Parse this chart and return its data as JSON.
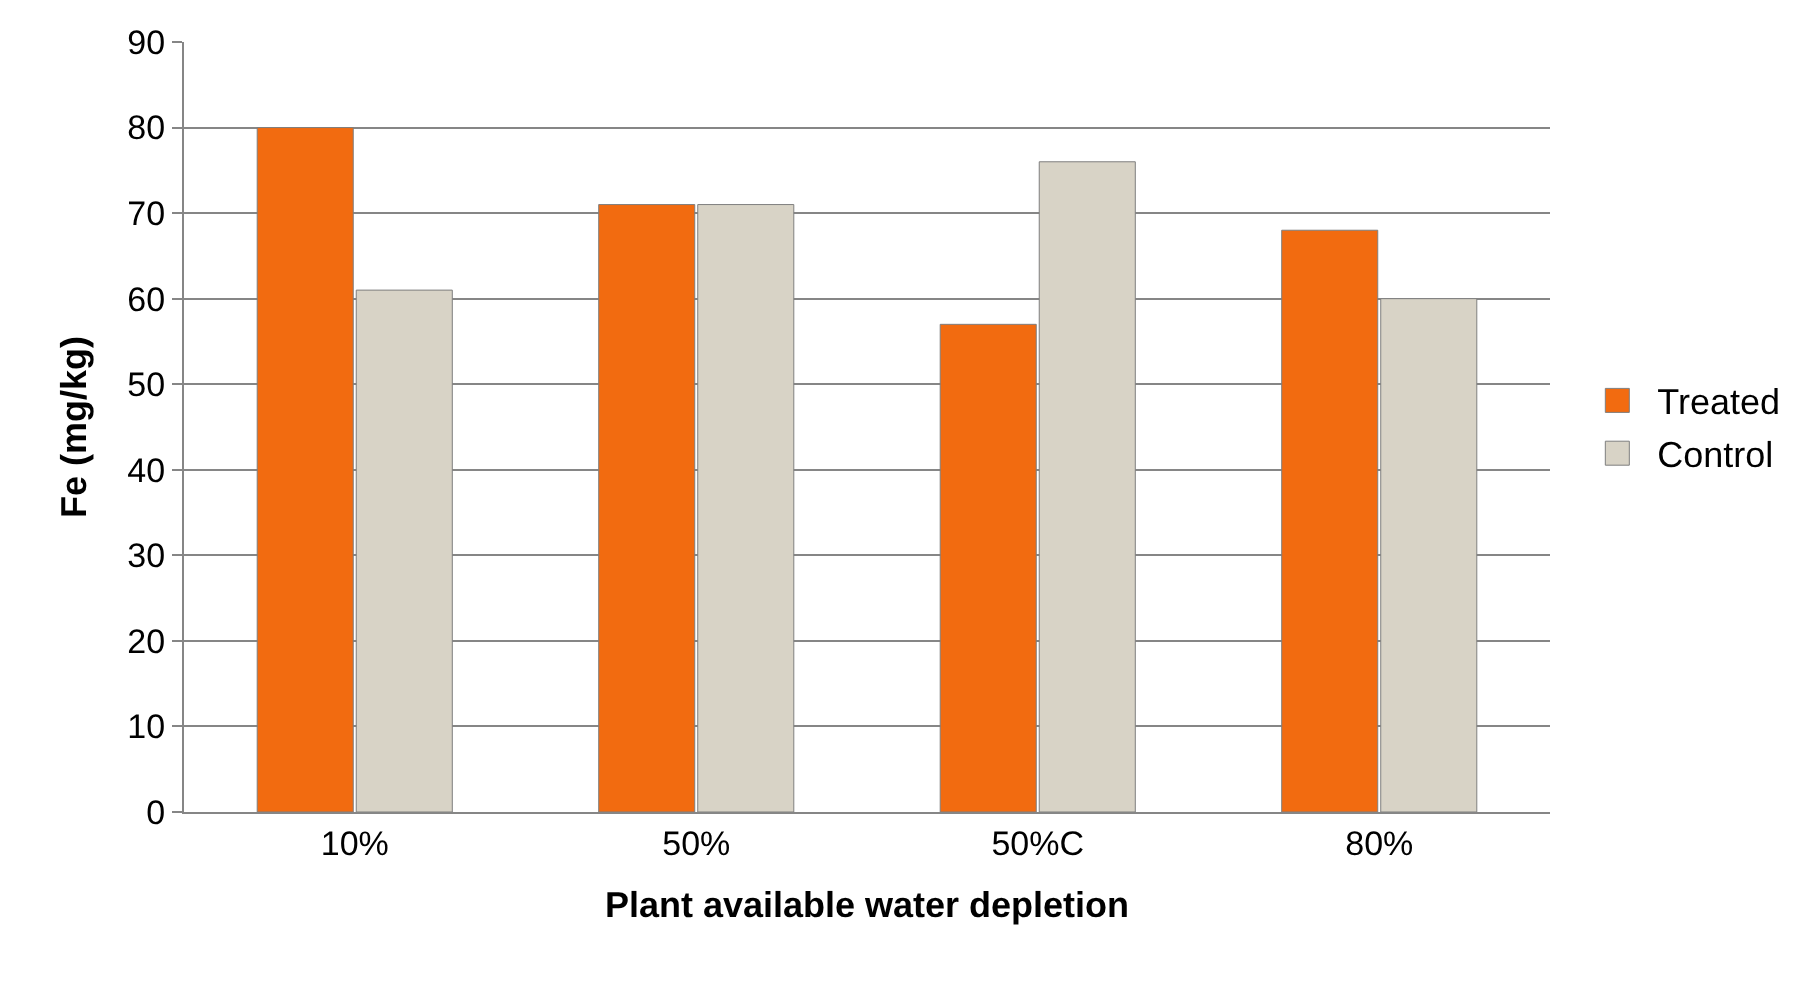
{
  "chart_data": {
    "type": "bar",
    "xlabel": "Plant available water depletion",
    "ylabel": "Fe (mg/kg)",
    "categories": [
      "10%",
      "50%",
      "50%C",
      "80%"
    ],
    "series": [
      {
        "name": "Treated",
        "color": "#f26b10",
        "values": [
          80,
          71,
          57,
          68
        ]
      },
      {
        "name": "Control",
        "color": "#d8d3c6",
        "values": [
          61,
          71,
          76,
          60
        ]
      }
    ],
    "ylim": [
      0,
      90
    ],
    "yticks": [
      0,
      10,
      20,
      30,
      40,
      50,
      60,
      70,
      80,
      90
    ],
    "grid": "y",
    "legend": "right"
  }
}
